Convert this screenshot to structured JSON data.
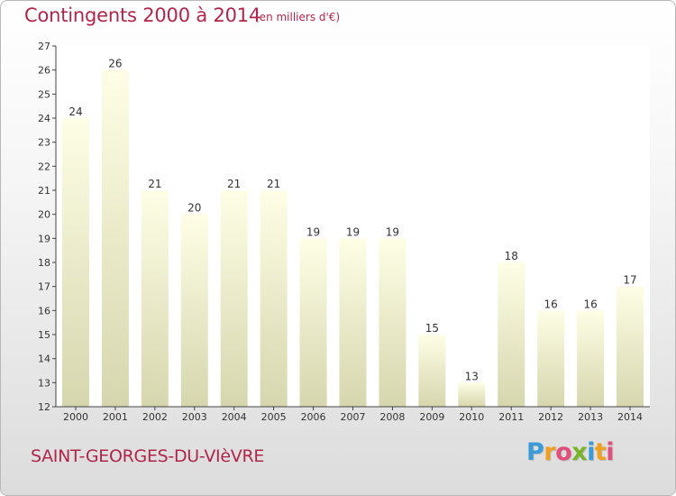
{
  "header": {
    "title": "Contingents 2000 à 2014",
    "subtitle": "(en milliers d'€)"
  },
  "footer": {
    "commune": "SAINT-GEORGES-DU-VIèVRE",
    "logo": {
      "letters": [
        "P",
        "r",
        "o",
        "x",
        "i",
        "t",
        "i"
      ],
      "colors": [
        "#3a9bd8",
        "#f0a020",
        "#e0507a",
        "#7ab42c",
        "#3a9bd8",
        "#f0a020",
        "#e0507a"
      ]
    }
  },
  "chart_data": {
    "type": "bar",
    "categories": [
      "2000",
      "2001",
      "2002",
      "2003",
      "2004",
      "2005",
      "2006",
      "2007",
      "2008",
      "2009",
      "2010",
      "2011",
      "2012",
      "2013",
      "2014"
    ],
    "values": [
      24,
      26,
      21,
      20,
      21,
      21,
      19,
      19,
      19,
      15,
      13,
      18,
      16,
      16,
      17
    ],
    "title": "Contingents 2000 à 2014",
    "subtitle": "(en milliers d'€)",
    "ylim": [
      12,
      27
    ],
    "yticks": [
      12,
      13,
      14,
      15,
      16,
      17,
      18,
      19,
      20,
      21,
      22,
      23,
      24,
      25,
      26,
      27
    ],
    "grid": false,
    "data_labels": true,
    "bar_color_top": "#fefee6",
    "bar_color_bottom": "#d6d6ae",
    "plot_background": "#ffffff"
  }
}
